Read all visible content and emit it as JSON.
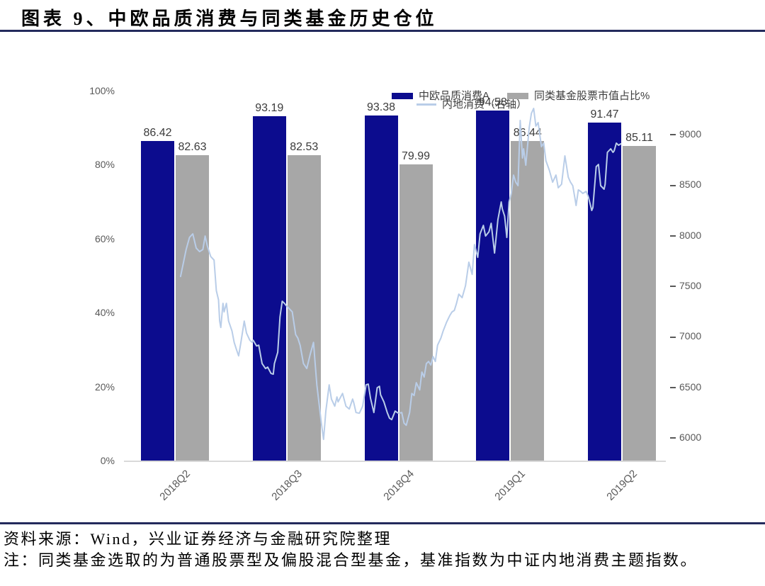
{
  "title": "图表 9、中欧品质消费与同类基金历史仓位",
  "footer": {
    "source": "资料来源：Wind，兴业证券经济与金融研究院整理",
    "note": "注：同类基金选取的为普通股票型及偏股混合型基金，基准指数为中证内地消费主题指数。"
  },
  "colors": {
    "bar_primary": "#0c0c8e",
    "bar_secondary": "#a7a7a7",
    "line": "#b9cde8",
    "rule": "#232a5c",
    "axis_text": "#595959",
    "axis_line": "#d9d9d9"
  },
  "chart_data": {
    "type": "bar",
    "subtype": "combo-bar-line",
    "categories": [
      "2018Q2",
      "2018Q3",
      "2018Q4",
      "2019Q1",
      "2019Q2"
    ],
    "series": [
      {
        "name": "中欧品质消费A",
        "type": "bar",
        "axis": "left",
        "values": [
          86.42,
          93.19,
          93.38,
          94.58,
          91.47
        ]
      },
      {
        "name": "同类基金股票市值占比%",
        "type": "bar",
        "axis": "left",
        "values": [
          82.63,
          82.53,
          79.99,
          86.44,
          85.11
        ]
      },
      {
        "name": "内地消费（右轴）",
        "type": "line",
        "axis": "right",
        "x_unit": "quarters from 2018Q2",
        "points": [
          [
            0.05,
            7590
          ],
          [
            0.1,
            7857
          ],
          [
            0.13,
            7976
          ],
          [
            0.16,
            8011
          ],
          [
            0.19,
            7871
          ],
          [
            0.22,
            7836
          ],
          [
            0.25,
            7857
          ],
          [
            0.27,
            7990
          ],
          [
            0.29,
            7892
          ],
          [
            0.32,
            7787
          ],
          [
            0.35,
            7752
          ],
          [
            0.37,
            7450
          ],
          [
            0.39,
            7359
          ],
          [
            0.4,
            7149
          ],
          [
            0.41,
            7086
          ],
          [
            0.43,
            7324
          ],
          [
            0.44,
            7240
          ],
          [
            0.46,
            7324
          ],
          [
            0.48,
            7149
          ],
          [
            0.51,
            7051
          ],
          [
            0.53,
            6938
          ],
          [
            0.55,
            6868
          ],
          [
            0.57,
            6805
          ],
          [
            0.59,
            6938
          ],
          [
            0.62,
            7149
          ],
          [
            0.64,
            7030
          ],
          [
            0.67,
            6959
          ],
          [
            0.69,
            6938
          ],
          [
            0.7,
            6959
          ],
          [
            0.73,
            6903
          ],
          [
            0.75,
            6910
          ],
          [
            0.78,
            6728
          ],
          [
            0.81,
            6679
          ],
          [
            0.83,
            6693
          ],
          [
            0.86,
            6630
          ],
          [
            0.88,
            6623
          ],
          [
            0.89,
            6728
          ],
          [
            0.92,
            6840
          ],
          [
            0.94,
            7191
          ],
          [
            0.96,
            7345
          ],
          [
            0.98,
            7324
          ],
          [
            1.0,
            7296
          ],
          [
            1.05,
            7240
          ],
          [
            1.08,
            7016
          ],
          [
            1.1,
            6980
          ],
          [
            1.12,
            6910
          ],
          [
            1.15,
            6728
          ],
          [
            1.18,
            6679
          ],
          [
            1.21,
            6819
          ],
          [
            1.24,
            6938
          ],
          [
            1.27,
            6518
          ],
          [
            1.31,
            6139
          ],
          [
            1.33,
            5978
          ],
          [
            1.35,
            6258
          ],
          [
            1.38,
            6518
          ],
          [
            1.4,
            6377
          ],
          [
            1.43,
            6307
          ],
          [
            1.45,
            6398
          ],
          [
            1.46,
            6349
          ],
          [
            1.5,
            6433
          ],
          [
            1.53,
            6307
          ],
          [
            1.56,
            6279
          ],
          [
            1.59,
            6377
          ],
          [
            1.6,
            6342
          ],
          [
            1.62,
            6244
          ],
          [
            1.65,
            6237
          ],
          [
            1.68,
            6307
          ],
          [
            1.71,
            6518
          ],
          [
            1.73,
            6525
          ],
          [
            1.75,
            6384
          ],
          [
            1.78,
            6244
          ],
          [
            1.81,
            6489
          ],
          [
            1.83,
            6503
          ],
          [
            1.84,
            6419
          ],
          [
            1.87,
            6349
          ],
          [
            1.9,
            6244
          ],
          [
            1.92,
            6188
          ],
          [
            1.94,
            6174
          ],
          [
            1.97,
            6258
          ],
          [
            2.0,
            6237
          ],
          [
            2.03,
            6244
          ],
          [
            2.05,
            6139
          ],
          [
            2.07,
            6118
          ],
          [
            2.1,
            6244
          ],
          [
            2.12,
            6433
          ],
          [
            2.14,
            6412
          ],
          [
            2.16,
            6539
          ],
          [
            2.19,
            6468
          ],
          [
            2.21,
            6644
          ],
          [
            2.23,
            6595
          ],
          [
            2.25,
            6728
          ],
          [
            2.27,
            6749
          ],
          [
            2.29,
            6714
          ],
          [
            2.31,
            6798
          ],
          [
            2.33,
            6749
          ],
          [
            2.35,
            6910
          ],
          [
            2.38,
            6980
          ],
          [
            2.4,
            7050
          ],
          [
            2.43,
            7135
          ],
          [
            2.46,
            7205
          ],
          [
            2.48,
            7240
          ],
          [
            2.5,
            7254
          ],
          [
            2.52,
            7324
          ],
          [
            2.54,
            7415
          ],
          [
            2.57,
            7380
          ],
          [
            2.6,
            7499
          ],
          [
            2.63,
            7731
          ],
          [
            2.66,
            7611
          ],
          [
            2.68,
            7906
          ],
          [
            2.71,
            7780
          ],
          [
            2.73,
            8011
          ],
          [
            2.76,
            8095
          ],
          [
            2.78,
            7990
          ],
          [
            2.81,
            8032
          ],
          [
            2.83,
            8116
          ],
          [
            2.86,
            7822
          ],
          [
            2.89,
            8151
          ],
          [
            2.92,
            8327
          ],
          [
            2.93,
            8257
          ],
          [
            2.95,
            8187
          ],
          [
            2.97,
            7976
          ],
          [
            2.99,
            8327
          ],
          [
            3.01,
            8411
          ],
          [
            3.03,
            8593
          ],
          [
            3.05,
            8523
          ],
          [
            3.07,
            8488
          ],
          [
            3.09,
            9133
          ],
          [
            3.11,
            8762
          ],
          [
            3.12,
            8853
          ],
          [
            3.14,
            8691
          ],
          [
            3.17,
            9063
          ],
          [
            3.19,
            9203
          ],
          [
            3.21,
            9252
          ],
          [
            3.23,
            9077
          ],
          [
            3.25,
            9112
          ],
          [
            3.28,
            8874
          ],
          [
            3.3,
            8909
          ],
          [
            3.32,
            8734
          ],
          [
            3.35,
            8642
          ],
          [
            3.38,
            8523
          ],
          [
            3.41,
            8593
          ],
          [
            3.43,
            8467
          ],
          [
            3.46,
            8502
          ],
          [
            3.49,
            8783
          ],
          [
            3.52,
            8572
          ],
          [
            3.54,
            8523
          ],
          [
            3.56,
            8488
          ],
          [
            3.58,
            8362
          ],
          [
            3.59,
            8292
          ],
          [
            3.61,
            8446
          ],
          [
            3.63,
            8432
          ],
          [
            3.65,
            8411
          ],
          [
            3.68,
            8432
          ],
          [
            3.7,
            8376
          ],
          [
            3.73,
            8243
          ],
          [
            3.74,
            8271
          ],
          [
            3.77,
            8677
          ],
          [
            3.79,
            8698
          ],
          [
            3.81,
            8488
          ],
          [
            3.84,
            8453
          ],
          [
            3.85,
            8502
          ],
          [
            3.87,
            8818
          ],
          [
            3.9,
            8853
          ],
          [
            3.92,
            8818
          ],
          [
            3.93,
            8832
          ],
          [
            3.95,
            8909
          ],
          [
            3.97,
            8888
          ],
          [
            3.99,
            8902
          ]
        ]
      }
    ],
    "left_axis": {
      "ticks": [
        "0%",
        "20%",
        "40%",
        "60%",
        "80%",
        "100%"
      ],
      "min": 0,
      "max": 100
    },
    "right_axis": {
      "ticks": [
        6000,
        6500,
        7000,
        7500,
        8000,
        8500,
        9000
      ],
      "min": 6000,
      "max": 9000
    },
    "legend_position": "top",
    "grid": false
  }
}
